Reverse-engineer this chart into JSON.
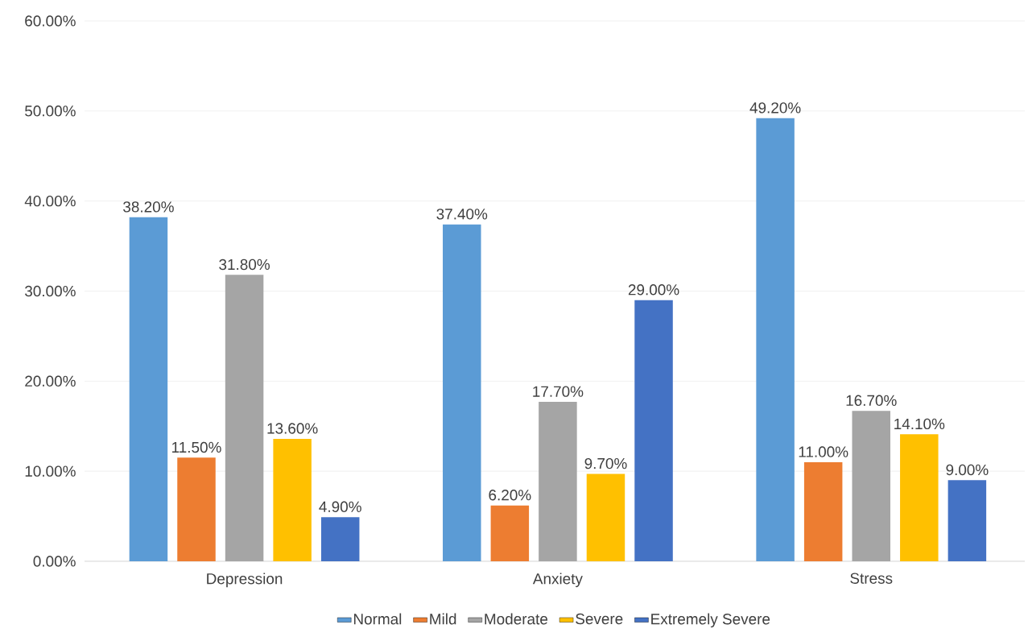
{
  "chart_data": {
    "type": "bar",
    "categories": [
      "Depression",
      "Anxiety",
      "Stress"
    ],
    "series": [
      {
        "name": "Normal",
        "color": "#5b9bd5",
        "values": [
          38.2,
          37.4,
          49.2
        ],
        "value_labels": [
          "38.20%",
          "37.40%",
          "49.20%"
        ]
      },
      {
        "name": "Mild",
        "color": "#ed7d31",
        "values": [
          11.5,
          6.2,
          11.0
        ],
        "value_labels": [
          "11.50%",
          "6.20%",
          "11.00%"
        ]
      },
      {
        "name": "Moderate",
        "color": "#a5a5a5",
        "values": [
          31.8,
          17.7,
          16.7
        ],
        "value_labels": [
          "31.80%",
          "17.70%",
          "16.70%"
        ]
      },
      {
        "name": "Severe",
        "color": "#ffc000",
        "values": [
          13.6,
          9.7,
          14.1
        ],
        "value_labels": [
          "13.60%",
          "9.70%",
          "14.10%"
        ]
      },
      {
        "name": "Extremely Severe",
        "color": "#4472c4",
        "values": [
          4.9,
          29.0,
          9.0
        ],
        "value_labels": [
          "4.90%",
          "29.00%",
          "9.00%"
        ]
      }
    ],
    "ylim": [
      0,
      60
    ],
    "yticks": [
      {
        "value": 0,
        "label": "0.00%"
      },
      {
        "value": 10,
        "label": "10.00%"
      },
      {
        "value": 20,
        "label": "20.00%"
      },
      {
        "value": 30,
        "label": "30.00%"
      },
      {
        "value": 40,
        "label": "40.00%"
      },
      {
        "value": 50,
        "label": "50.00%"
      },
      {
        "value": 60,
        "label": "60.00%"
      }
    ],
    "grid": "y",
    "legend": "bottom"
  }
}
